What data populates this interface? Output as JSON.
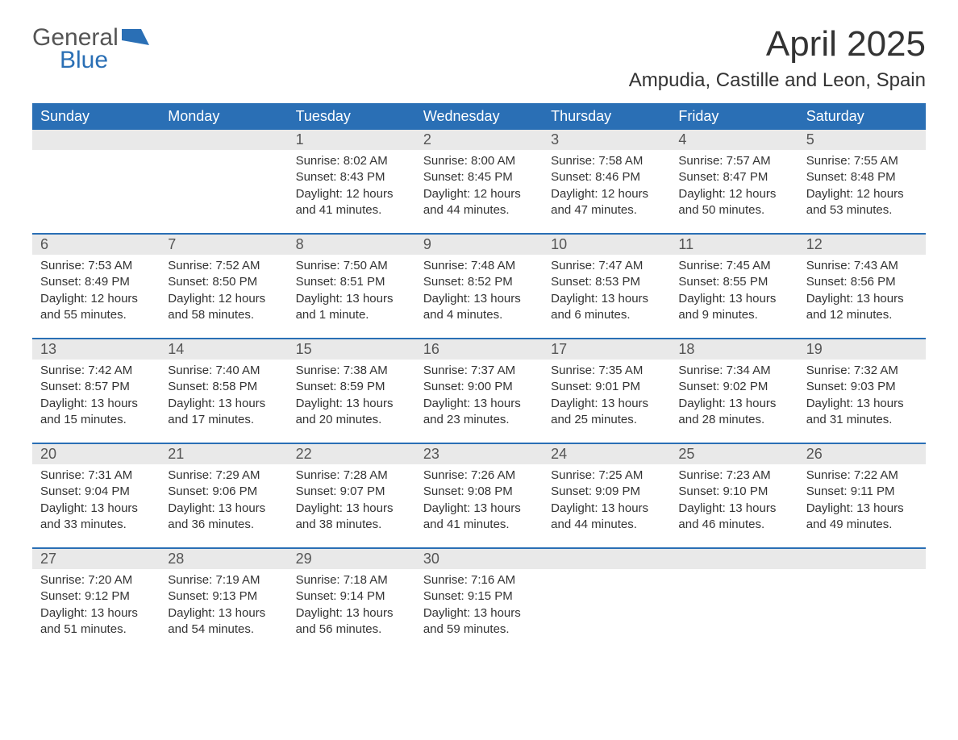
{
  "brand": {
    "part1": "General",
    "part2": "Blue",
    "color1": "#555555",
    "color2": "#2a6fb5"
  },
  "title": "April 2025",
  "location": "Ampudia, Castille and Leon, Spain",
  "colors": {
    "header_bg": "#2a6fb5",
    "header_text": "#ffffff",
    "daynum_bg": "#e9e9e9",
    "divider": "#2a6fb5",
    "body_text": "#333333"
  },
  "weekdays": [
    "Sunday",
    "Monday",
    "Tuesday",
    "Wednesday",
    "Thursday",
    "Friday",
    "Saturday"
  ],
  "weeks": [
    [
      {
        "n": "",
        "sunrise": "",
        "sunset": "",
        "daylight": ""
      },
      {
        "n": "",
        "sunrise": "",
        "sunset": "",
        "daylight": ""
      },
      {
        "n": "1",
        "sunrise": "Sunrise: 8:02 AM",
        "sunset": "Sunset: 8:43 PM",
        "daylight": "Daylight: 12 hours and 41 minutes."
      },
      {
        "n": "2",
        "sunrise": "Sunrise: 8:00 AM",
        "sunset": "Sunset: 8:45 PM",
        "daylight": "Daylight: 12 hours and 44 minutes."
      },
      {
        "n": "3",
        "sunrise": "Sunrise: 7:58 AM",
        "sunset": "Sunset: 8:46 PM",
        "daylight": "Daylight: 12 hours and 47 minutes."
      },
      {
        "n": "4",
        "sunrise": "Sunrise: 7:57 AM",
        "sunset": "Sunset: 8:47 PM",
        "daylight": "Daylight: 12 hours and 50 minutes."
      },
      {
        "n": "5",
        "sunrise": "Sunrise: 7:55 AM",
        "sunset": "Sunset: 8:48 PM",
        "daylight": "Daylight: 12 hours and 53 minutes."
      }
    ],
    [
      {
        "n": "6",
        "sunrise": "Sunrise: 7:53 AM",
        "sunset": "Sunset: 8:49 PM",
        "daylight": "Daylight: 12 hours and 55 minutes."
      },
      {
        "n": "7",
        "sunrise": "Sunrise: 7:52 AM",
        "sunset": "Sunset: 8:50 PM",
        "daylight": "Daylight: 12 hours and 58 minutes."
      },
      {
        "n": "8",
        "sunrise": "Sunrise: 7:50 AM",
        "sunset": "Sunset: 8:51 PM",
        "daylight": "Daylight: 13 hours and 1 minute."
      },
      {
        "n": "9",
        "sunrise": "Sunrise: 7:48 AM",
        "sunset": "Sunset: 8:52 PM",
        "daylight": "Daylight: 13 hours and 4 minutes."
      },
      {
        "n": "10",
        "sunrise": "Sunrise: 7:47 AM",
        "sunset": "Sunset: 8:53 PM",
        "daylight": "Daylight: 13 hours and 6 minutes."
      },
      {
        "n": "11",
        "sunrise": "Sunrise: 7:45 AM",
        "sunset": "Sunset: 8:55 PM",
        "daylight": "Daylight: 13 hours and 9 minutes."
      },
      {
        "n": "12",
        "sunrise": "Sunrise: 7:43 AM",
        "sunset": "Sunset: 8:56 PM",
        "daylight": "Daylight: 13 hours and 12 minutes."
      }
    ],
    [
      {
        "n": "13",
        "sunrise": "Sunrise: 7:42 AM",
        "sunset": "Sunset: 8:57 PM",
        "daylight": "Daylight: 13 hours and 15 minutes."
      },
      {
        "n": "14",
        "sunrise": "Sunrise: 7:40 AM",
        "sunset": "Sunset: 8:58 PM",
        "daylight": "Daylight: 13 hours and 17 minutes."
      },
      {
        "n": "15",
        "sunrise": "Sunrise: 7:38 AM",
        "sunset": "Sunset: 8:59 PM",
        "daylight": "Daylight: 13 hours and 20 minutes."
      },
      {
        "n": "16",
        "sunrise": "Sunrise: 7:37 AM",
        "sunset": "Sunset: 9:00 PM",
        "daylight": "Daylight: 13 hours and 23 minutes."
      },
      {
        "n": "17",
        "sunrise": "Sunrise: 7:35 AM",
        "sunset": "Sunset: 9:01 PM",
        "daylight": "Daylight: 13 hours and 25 minutes."
      },
      {
        "n": "18",
        "sunrise": "Sunrise: 7:34 AM",
        "sunset": "Sunset: 9:02 PM",
        "daylight": "Daylight: 13 hours and 28 minutes."
      },
      {
        "n": "19",
        "sunrise": "Sunrise: 7:32 AM",
        "sunset": "Sunset: 9:03 PM",
        "daylight": "Daylight: 13 hours and 31 minutes."
      }
    ],
    [
      {
        "n": "20",
        "sunrise": "Sunrise: 7:31 AM",
        "sunset": "Sunset: 9:04 PM",
        "daylight": "Daylight: 13 hours and 33 minutes."
      },
      {
        "n": "21",
        "sunrise": "Sunrise: 7:29 AM",
        "sunset": "Sunset: 9:06 PM",
        "daylight": "Daylight: 13 hours and 36 minutes."
      },
      {
        "n": "22",
        "sunrise": "Sunrise: 7:28 AM",
        "sunset": "Sunset: 9:07 PM",
        "daylight": "Daylight: 13 hours and 38 minutes."
      },
      {
        "n": "23",
        "sunrise": "Sunrise: 7:26 AM",
        "sunset": "Sunset: 9:08 PM",
        "daylight": "Daylight: 13 hours and 41 minutes."
      },
      {
        "n": "24",
        "sunrise": "Sunrise: 7:25 AM",
        "sunset": "Sunset: 9:09 PM",
        "daylight": "Daylight: 13 hours and 44 minutes."
      },
      {
        "n": "25",
        "sunrise": "Sunrise: 7:23 AM",
        "sunset": "Sunset: 9:10 PM",
        "daylight": "Daylight: 13 hours and 46 minutes."
      },
      {
        "n": "26",
        "sunrise": "Sunrise: 7:22 AM",
        "sunset": "Sunset: 9:11 PM",
        "daylight": "Daylight: 13 hours and 49 minutes."
      }
    ],
    [
      {
        "n": "27",
        "sunrise": "Sunrise: 7:20 AM",
        "sunset": "Sunset: 9:12 PM",
        "daylight": "Daylight: 13 hours and 51 minutes."
      },
      {
        "n": "28",
        "sunrise": "Sunrise: 7:19 AM",
        "sunset": "Sunset: 9:13 PM",
        "daylight": "Daylight: 13 hours and 54 minutes."
      },
      {
        "n": "29",
        "sunrise": "Sunrise: 7:18 AM",
        "sunset": "Sunset: 9:14 PM",
        "daylight": "Daylight: 13 hours and 56 minutes."
      },
      {
        "n": "30",
        "sunrise": "Sunrise: 7:16 AM",
        "sunset": "Sunset: 9:15 PM",
        "daylight": "Daylight: 13 hours and 59 minutes."
      },
      {
        "n": "",
        "sunrise": "",
        "sunset": "",
        "daylight": ""
      },
      {
        "n": "",
        "sunrise": "",
        "sunset": "",
        "daylight": ""
      },
      {
        "n": "",
        "sunrise": "",
        "sunset": "",
        "daylight": ""
      }
    ]
  ]
}
